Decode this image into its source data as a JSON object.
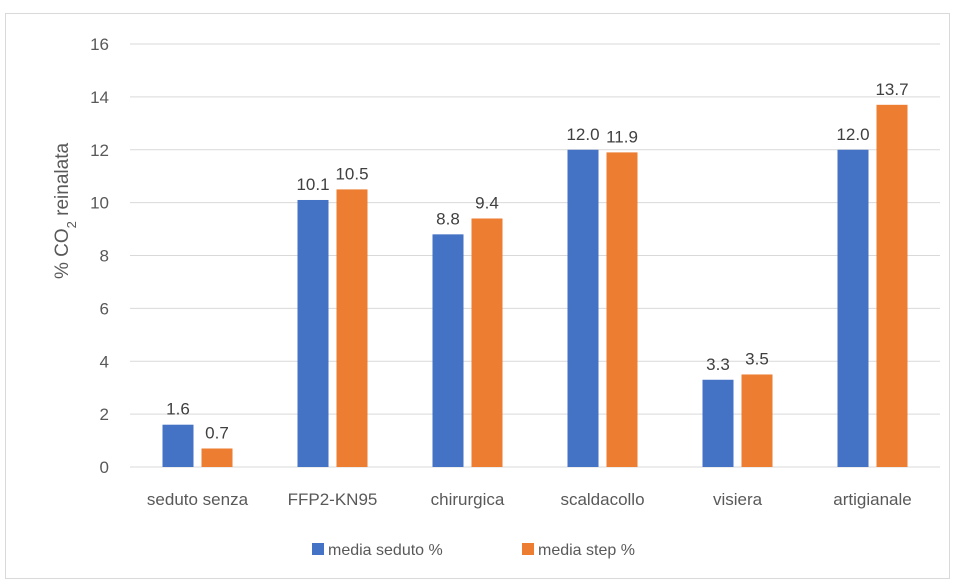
{
  "chart_data": {
    "type": "bar",
    "categories": [
      "seduto senza",
      "FFP2-KN95",
      "chirurgica",
      "scaldacollo",
      "visiera",
      "artigianale"
    ],
    "series": [
      {
        "name": "media seduto %",
        "color": "#4472c4",
        "values": [
          1.6,
          10.1,
          8.8,
          12.0,
          3.3,
          12.0
        ],
        "labels": [
          "1.6",
          "10.1",
          "8.8",
          "12.0",
          "3.3",
          "12.0"
        ]
      },
      {
        "name": "media step %",
        "color": "#ed7d31",
        "values": [
          0.7,
          10.5,
          9.4,
          11.9,
          3.5,
          13.7
        ],
        "labels": [
          "0.7",
          "10.5",
          "9.4",
          "11.9",
          "3.5",
          "13.7"
        ]
      }
    ],
    "ylabel": {
      "prefix": "% CO",
      "subscript": "2",
      "suffix": " reinalata"
    },
    "ylim": [
      0,
      16
    ],
    "yticks": [
      "0",
      "2",
      "4",
      "6",
      "8",
      "10",
      "12",
      "14",
      "16"
    ],
    "grid": true,
    "legend": "bottom",
    "gridColor": "#d9d9d9"
  }
}
